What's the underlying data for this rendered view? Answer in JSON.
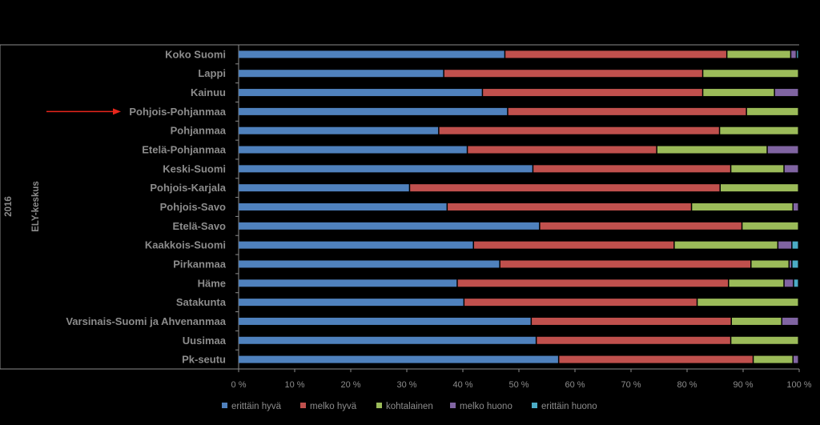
{
  "chart_data": {
    "type": "bar",
    "stacked": "percent",
    "orientation": "horizontal",
    "year_label": "2016",
    "group_label": "ELY-keskus",
    "highlighted_category": "Pohjois-Pohjanmaa",
    "categories": [
      "Koko Suomi",
      "Lappi",
      "Kainuu",
      "Pohjois-Pohjanmaa",
      "Pohjanmaa",
      "Etelä-Pohjanmaa",
      "Keski-Suomi",
      "Pohjois-Karjala",
      "Pohjois-Savo",
      "Etelä-Savo",
      "Kaakkois-Suomi",
      "Pirkanmaa",
      "Häme",
      "Satakunta",
      "Varsinais-Suomi ja Ahvenanmaa",
      "Uusimaa",
      "Pk-seutu"
    ],
    "series": [
      {
        "name": "erittäin hyvä",
        "color": "#4f81bd",
        "values": [
          47.6,
          36.7,
          43.6,
          48.1,
          35.8,
          40.9,
          52.6,
          30.6,
          37.3,
          53.8,
          42.0,
          46.7,
          39.1,
          40.3,
          52.3,
          53.2,
          57.2
        ]
      },
      {
        "name": "melko hyvä",
        "color": "#c0504d",
        "values": [
          39.6,
          46.2,
          39.3,
          42.6,
          50.1,
          33.8,
          35.3,
          55.4,
          43.6,
          36.1,
          35.8,
          44.8,
          48.4,
          41.6,
          35.7,
          34.7,
          34.7
        ]
      },
      {
        "name": "kohtalainen",
        "color": "#9bbb59",
        "values": [
          11.4,
          17.1,
          12.8,
          9.3,
          14.1,
          19.7,
          9.5,
          14.0,
          18.1,
          10.1,
          18.5,
          6.8,
          9.9,
          18.1,
          9.0,
          12.1,
          7.1
        ]
      },
      {
        "name": "melko huono",
        "color": "#8064a2",
        "values": [
          1.0,
          0.0,
          4.3,
          0.0,
          0.0,
          5.6,
          2.6,
          0.0,
          1.0,
          0.0,
          2.5,
          0.5,
          1.7,
          0.0,
          3.0,
          0.0,
          1.0
        ]
      },
      {
        "name": "erittäin huono",
        "color": "#4bacc6",
        "values": [
          0.4,
          0.0,
          0.0,
          0.0,
          0.0,
          0.0,
          0.0,
          0.0,
          0.0,
          0.0,
          1.2,
          1.2,
          0.9,
          0.0,
          0.0,
          0.0,
          0.0
        ]
      }
    ],
    "x_ticks": [
      "0 %",
      "10 %",
      "20 %",
      "30 %",
      "40 %",
      "50 %",
      "60 %",
      "70 %",
      "80 %",
      "90 %",
      "100 %"
    ],
    "xlim": [
      0,
      100
    ],
    "legend_position": "bottom",
    "annotation": "red arrow pointing to Pohjois-Pohjanmaa"
  }
}
